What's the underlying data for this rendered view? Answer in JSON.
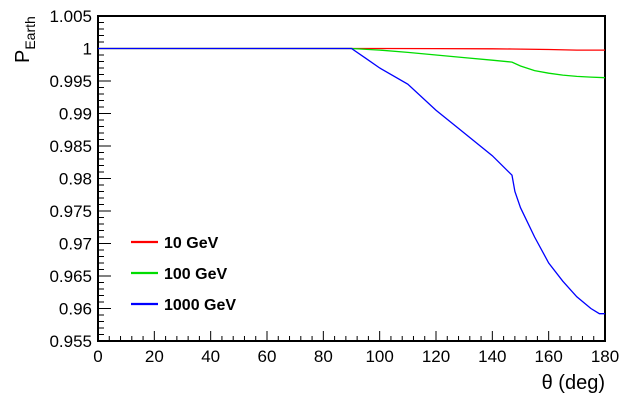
{
  "chart_data": {
    "type": "line",
    "xlabel": "θ (deg)",
    "ylabel_main": "P",
    "ylabel_sub": "Earth",
    "xlim": [
      0,
      180
    ],
    "ylim": [
      0.955,
      1.005
    ],
    "x_ticks": [
      0,
      20,
      40,
      60,
      80,
      100,
      120,
      140,
      160,
      180
    ],
    "x_tick_labels": [
      "0",
      "20",
      "40",
      "60",
      "80",
      "100",
      "120",
      "140",
      "160",
      "180"
    ],
    "y_ticks": [
      0.955,
      0.96,
      0.965,
      0.97,
      0.975,
      0.98,
      0.985,
      0.99,
      0.995,
      1,
      1.005
    ],
    "y_tick_labels": [
      "0.955",
      "0.96",
      "0.965",
      "0.97",
      "0.975",
      "0.98",
      "0.985",
      "0.99",
      "0.995",
      "1",
      "1.005"
    ],
    "grid": false,
    "legend_position": "bottom-left",
    "series": [
      {
        "name": "10 GeV",
        "color": "#ff0000",
        "x": [
          0,
          90,
          100,
          120,
          140,
          147,
          160,
          170,
          180
        ],
        "y": [
          1.0,
          1.0,
          1.0,
          0.99998,
          0.99995,
          0.99993,
          0.99985,
          0.99975,
          0.99975
        ]
      },
      {
        "name": "100 GeV",
        "color": "#00dd00",
        "x": [
          0,
          90,
          100,
          110,
          120,
          130,
          140,
          147,
          150,
          155,
          160,
          165,
          170,
          175,
          180
        ],
        "y": [
          1.0,
          1.0,
          0.99975,
          0.9994,
          0.999,
          0.9986,
          0.9982,
          0.9979,
          0.9973,
          0.9966,
          0.9962,
          0.9959,
          0.9957,
          0.9956,
          0.9955
        ]
      },
      {
        "name": "1000 GeV",
        "color": "#0000ff",
        "x": [
          0,
          90,
          95,
          100,
          110,
          120,
          130,
          140,
          147,
          148,
          150,
          155,
          160,
          165,
          170,
          175,
          178,
          180
        ],
        "y": [
          1.0,
          1.0,
          0.9985,
          0.997,
          0.9945,
          0.9905,
          0.987,
          0.9835,
          0.9805,
          0.978,
          0.9755,
          0.971,
          0.967,
          0.9642,
          0.9618,
          0.96,
          0.9592,
          0.9592
        ]
      }
    ]
  }
}
